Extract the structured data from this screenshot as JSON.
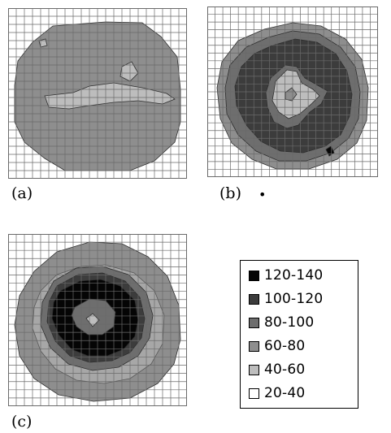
{
  "panels": [
    {
      "id": "a",
      "label": "(a)"
    },
    {
      "id": "b",
      "label": "(b)",
      "mark": "•"
    },
    {
      "id": "c",
      "label": "(c)"
    }
  ],
  "legend": {
    "items": [
      {
        "label": "120-140",
        "color": "#050505"
      },
      {
        "label": "100-120",
        "color": "#3c3c3c"
      },
      {
        "label": "80-100",
        "color": "#6e6e6e"
      },
      {
        "label": "60-80",
        "color": "#8e8e8e"
      },
      {
        "label": "40-60",
        "color": "#bdbdbd"
      },
      {
        "label": "20-40",
        "color": "#ffffff"
      }
    ]
  },
  "colors": {
    "grid": "#6a6a6a",
    "contour": "#2e2e2e"
  }
}
